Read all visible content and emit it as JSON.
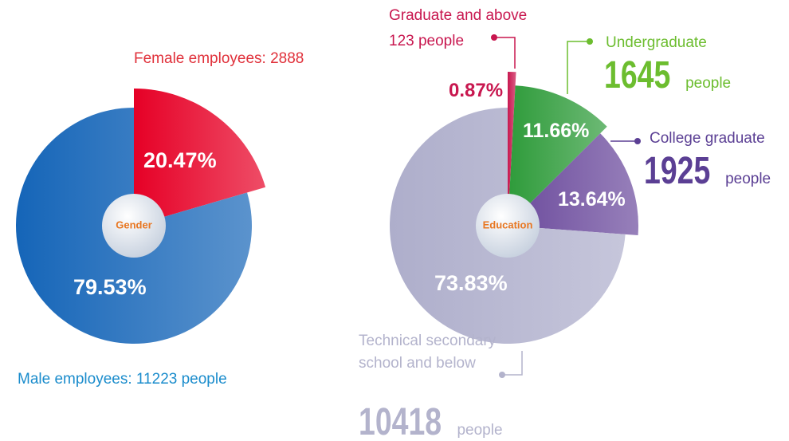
{
  "chart_data": [
    {
      "type": "pie",
      "center_label": "Gender",
      "categories": [
        "Female employees: 2888",
        "Male employees: 11223 people"
      ],
      "values": [
        20.47,
        79.53
      ],
      "value_labels": [
        "20.47%",
        "79.53%"
      ],
      "colors": [
        "#e60026",
        "#1565b8"
      ]
    },
    {
      "type": "pie",
      "center_label": "Education",
      "categories": [
        "Graduate and above",
        "Undergraduate",
        "College graduate",
        "Technical secondary school and below"
      ],
      "counts": [
        123,
        1645,
        1925,
        10418
      ],
      "unit": "people",
      "values": [
        0.87,
        11.66,
        13.64,
        73.83
      ],
      "value_labels": [
        "0.87%",
        "11.66%",
        "13.64%",
        "73.83%"
      ],
      "colors": [
        "#c8174f",
        "#2e9b3a",
        "#6b4a9c",
        "#aeaecb"
      ]
    }
  ]
}
